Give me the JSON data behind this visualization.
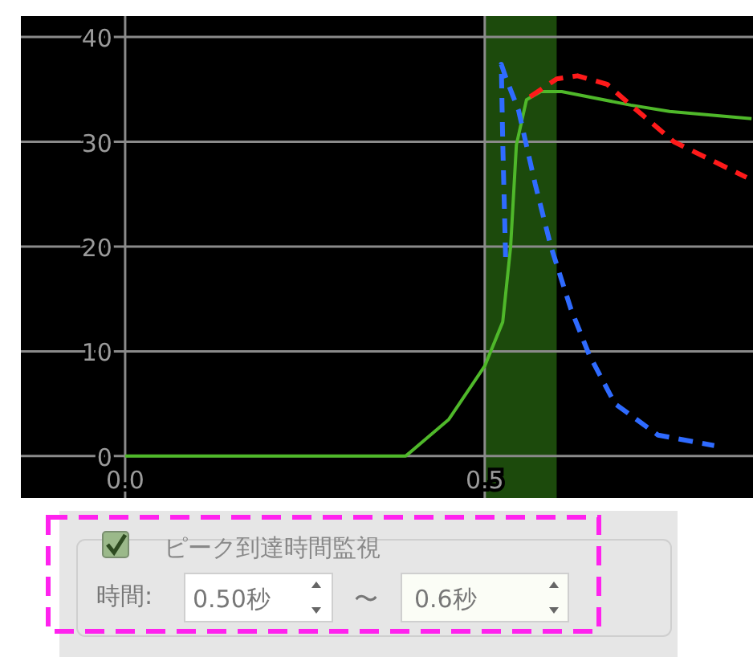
{
  "chart_data": {
    "type": "line",
    "xlim": [
      -0.145,
      0.873
    ],
    "ylim": [
      -4,
      42
    ],
    "xticks": [
      {
        "value": 0,
        "label": "0.0"
      },
      0.5
    ],
    "yticks": [
      0,
      10,
      20,
      30,
      40
    ],
    "grid": true,
    "series": [
      {
        "color": "#4fb82a",
        "line_style": "solid",
        "x": [
          0,
          0.39,
          0.45,
          0.5,
          0.525,
          0.536,
          0.544,
          0.558,
          0.578,
          0.607,
          0.703,
          0.757,
          0.871
        ],
        "values": [
          0,
          0,
          3.5,
          8.6,
          12.8,
          20,
          29.7,
          34,
          34.8,
          34.8,
          33.5,
          32.9,
          32.2
        ]
      },
      {
        "color": "#2f6bff",
        "line_style": "dashed",
        "x": [
          0.529,
          0.525,
          0.523,
          0.53,
          0.547,
          0.57,
          0.592,
          0.62,
          0.645,
          0.681,
          0.741,
          0.819
        ],
        "values": [
          19,
          30,
          37.4,
          36,
          33,
          26,
          20,
          14,
          9.7,
          5,
          2,
          1
        ]
      },
      {
        "color": "#ff1a1a",
        "line_style": "dashed",
        "x": [
          0.563,
          0.6,
          0.629,
          0.67,
          0.703,
          0.763,
          0.864
        ],
        "values": [
          34.3,
          36,
          36.3,
          35.5,
          33.5,
          30,
          26.6
        ]
      }
    ],
    "bands": [
      {
        "axis": "x",
        "from": 0.5,
        "to": 0.6,
        "color": "#1c4a0c"
      }
    ],
    "annotations": [
      "ピーク到達時間監視",
      "時間:",
      "0.50秒",
      "〜",
      "0.6秒"
    ]
  }
}
